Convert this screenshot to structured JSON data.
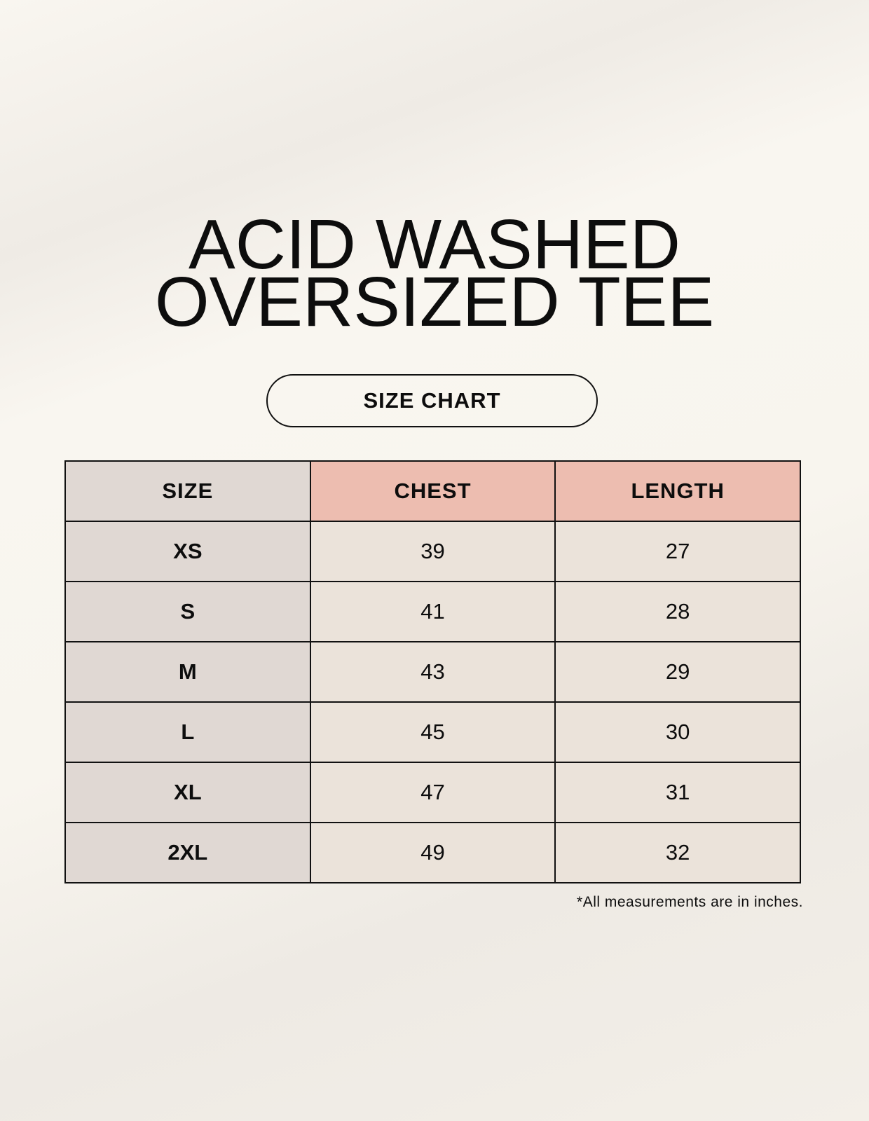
{
  "title": {
    "line1": "ACID WASHED",
    "line2": "OVERSIZED TEE"
  },
  "badge": "SIZE CHART",
  "table": {
    "headers": [
      "SIZE",
      "CHEST",
      "LENGTH"
    ],
    "rows": [
      [
        "XS",
        "39",
        "27"
      ],
      [
        "S",
        "41",
        "28"
      ],
      [
        "M",
        "43",
        "29"
      ],
      [
        "L",
        "45",
        "30"
      ],
      [
        "XL",
        "47",
        "31"
      ],
      [
        "2XL",
        "49",
        "32"
      ]
    ]
  },
  "note": "*All measurements are in inches.",
  "colors": {
    "size_column": "#e0d8d3",
    "header_accent": "#edbdb0",
    "value_cells": "#ebe3da"
  }
}
